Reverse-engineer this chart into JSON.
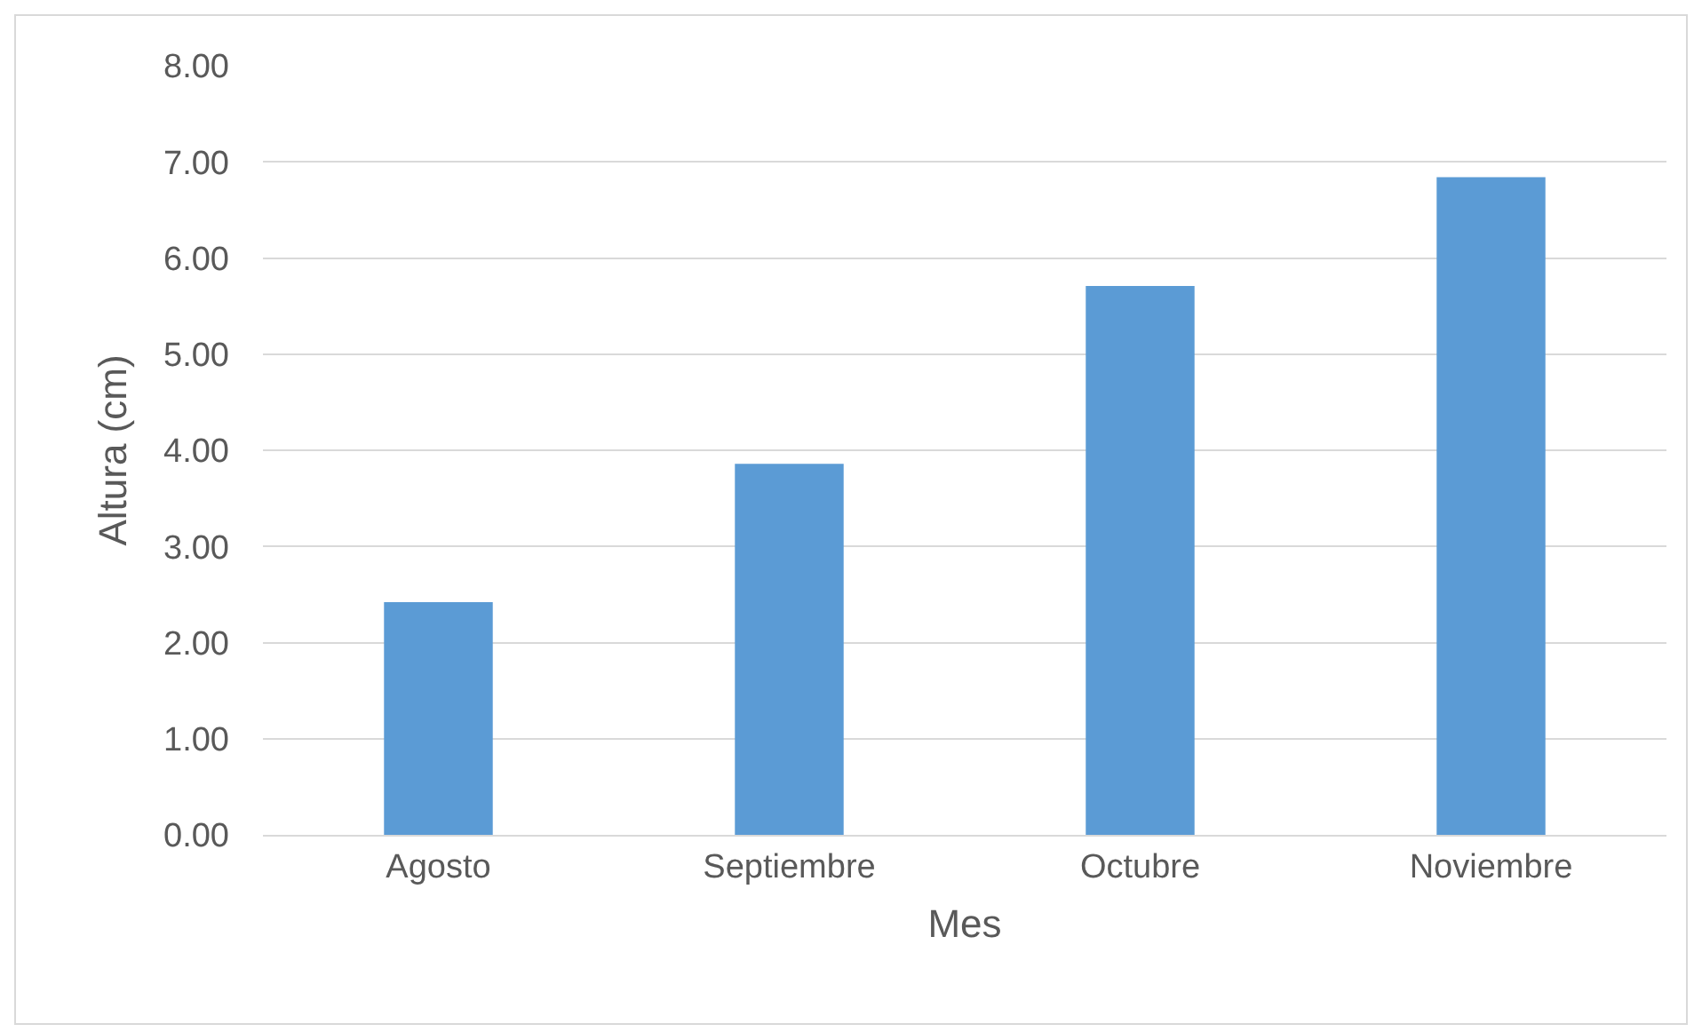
{
  "chart_data": {
    "type": "bar",
    "xlabel": "Mes",
    "ylabel": "Altura (cm)",
    "categories": [
      "Agosto",
      "Septiembre",
      "Octubre",
      "Noviembre"
    ],
    "values": [
      2.42,
      3.86,
      5.71,
      6.84
    ],
    "color": "#5b9bd5",
    "ylim": [
      0,
      8
    ],
    "yticks": [
      {
        "value": 0,
        "label": "0.00"
      },
      {
        "value": 1,
        "label": "1.00"
      },
      {
        "value": 2,
        "label": "2.00"
      },
      {
        "value": 3,
        "label": "3.00"
      },
      {
        "value": 4,
        "label": "4.00"
      },
      {
        "value": 5,
        "label": "5.00"
      },
      {
        "value": 6,
        "label": "6.00"
      },
      {
        "value": 7,
        "label": "7.00"
      },
      {
        "value": 8,
        "label": "8.00"
      }
    ],
    "grid": "y",
    "legend": false
  }
}
